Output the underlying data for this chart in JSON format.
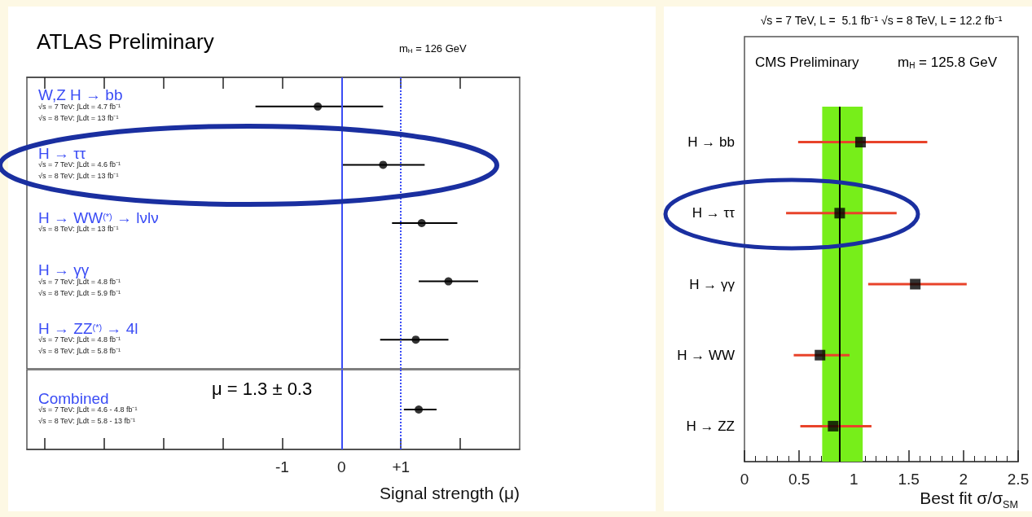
{
  "chart_data": [
    {
      "type": "scatter",
      "orientation": "horizontal",
      "title": "ATLAS Preliminary",
      "categories": [
        "W,Z H → bb\n√s = 7 TeV: ∫Ldt = 4.7 fb⁻¹\n√s = 8 TeV: ∫Ldt = 13 fb⁻¹",
        "H → ττ\n√s = 7 TeV: ∫Ldt = 4.6 fb⁻¹\n√s = 8 TeV: ∫Ldt = 13 fb⁻¹",
        "H → WW$^{(*)}$ → lνlν\n√s = 8 TeV: ∫Ldt = 13 fb⁻¹",
        "H → γγ\n√s = 7 TeV: ∫Ldt = 4.8 fb⁻¹\n√s = 8 TeV: ∫Ldt = 5.9 fb⁻¹",
        "H → ZZ$^{(*)}$ → 4l\n√s = 7 TeV: ∫Ldt = 4.8 fb⁻¹\n√s = 8 TeV: ∫Ldt = 5.8 fb⁻¹"
      ],
      "series": [
        {
          "color": "#000000",
          "values": [
            -0.4,
            0.7,
            1.35,
            1.8,
            1.25
          ],
          "errors": [
            [
              -1.45,
              0.7
            ],
            [
              0,
              1.4
            ],
            [
              0.85,
              1.95
            ],
            [
              1.3,
              2.3
            ],
            [
              0.65,
              1.8
            ]
          ]
        }
      ],
      "marker": "circle",
      "xlim": [
        -5.3,
        3
      ],
      "xticks": [
        -5,
        -4,
        -3,
        -2,
        -1,
        0,
        1,
        2
      ],
      "tick_labels": "y",
      "ref_lines": [
        {
          "axis": "x",
          "value": 0,
          "color": "#3a4cf5",
          "line_style": "solid"
        },
        {
          "axis": "x",
          "value": 1,
          "color": "#3a4cf5",
          "line_style": "dotted"
        }
      ],
      "annotations": [
        "m$_{H}$ = 126 GeV"
      ],
      "grid": false
    },
    {
      "type": "scatter",
      "orientation": "horizontal",
      "xlabel": "Signal strength (μ)",
      "categories": [
        "Combined\n√s = 7 TeV: ∫Ldt = 4.6 - 4.8 fb⁻¹\n√s = 8 TeV: ∫Ldt = 5.8 - 13 fb⁻¹"
      ],
      "series": [
        {
          "color": "#000000",
          "values": [
            1.3
          ],
          "errors": [
            [
              1.05,
              1.6
            ]
          ]
        }
      ],
      "marker": "circle",
      "xlim": [
        -5.3,
        3
      ],
      "xticks": [
        {
          "value": -5,
          "label": null
        },
        {
          "value": -4,
          "label": null
        },
        {
          "value": -3,
          "label": null
        },
        {
          "value": -2,
          "label": null
        },
        -1,
        0,
        {
          "value": 1,
          "label": "+1"
        },
        {
          "value": 2,
          "label": null
        }
      ],
      "ref_lines": [
        {
          "axis": "x",
          "value": 0,
          "color": "#3a4cf5",
          "line_style": "solid"
        },
        {
          "axis": "x",
          "value": 1,
          "color": "#3a4cf5",
          "line_style": "dotted"
        }
      ],
      "annotations": [
        "μ = 1.3 ± 0.3"
      ],
      "grid": false
    },
    {
      "type": "scatter",
      "orientation": "horizontal",
      "title": "CMS Preliminary",
      "subtitle": "√s = 7 TeV, L =  5.1 fb⁻¹ √s = 8 TeV, L = 12.2 fb⁻¹",
      "xlabel": "Best fit σ/σ$_{SM}$",
      "categories": [
        "H → bb",
        "H → ττ",
        "H → γγ",
        "H → WW",
        "H → ZZ"
      ],
      "series": [
        {
          "color": "#000000",
          "values": [
            1.06,
            0.87,
            1.56,
            0.69,
            0.81
          ],
          "errors": [
            [
              0.49,
              1.67
            ],
            [
              0.38,
              1.39
            ],
            [
              1.13,
              2.03
            ],
            [
              0.45,
              0.96
            ],
            [
              0.51,
              1.16
            ]
          ]
        }
      ],
      "marker": "square",
      "xlim": [
        0,
        2.5
      ],
      "xticks": [
        0,
        0.5,
        1,
        1.5,
        2,
        2.5
      ],
      "ref_lines": [
        {
          "axis": "x",
          "value": 0.87,
          "color": "#000000",
          "line_style": "solid"
        }
      ],
      "bands": [
        {
          "axis": "x",
          "from": 0.71,
          "to": 1.08,
          "color": "#77ee1a"
        }
      ],
      "annotations": [
        "m$_{H}$ = 125.8 GeV"
      ],
      "grid": false
    }
  ]
}
